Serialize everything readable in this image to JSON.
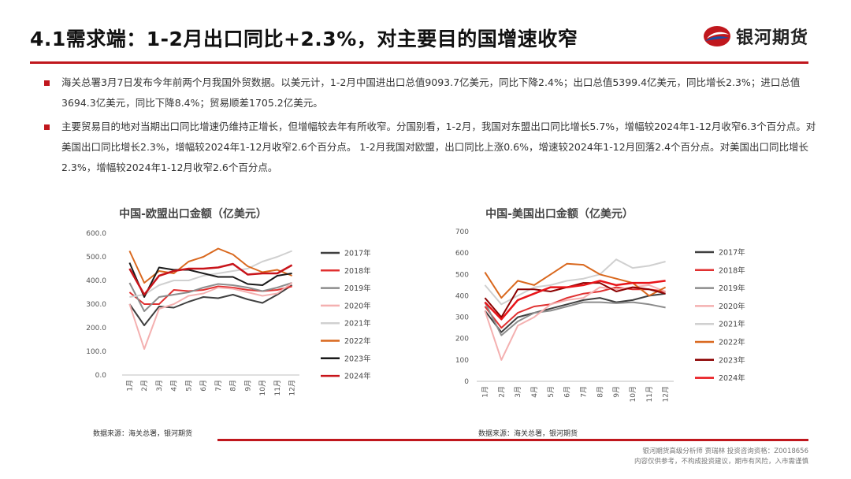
{
  "header": {
    "title": "4.1需求端：1-2月出口同比+2.3%，对主要目的国增速收窄",
    "logo_text": "银河期货"
  },
  "bullets": [
    "海关总署3月7日发布今年前两个月我国外贸数据。以美元计，1-2月中国进出口总值9093.7亿美元，同比下降2.4%；出口总值5399.4亿美元，同比增长2.3%；进口总值3694.3亿美元，同比下降8.4%；贸易顺差1705.2亿美元。",
    "主要贸易目的地对当期出口同比增速仍维持正增长，但增幅较去年有所收窄。分国别看，1-2月，我国对东盟出口同比增长5.7%，增幅较2024年1-12月收窄6.3个百分点。对美国出口同比增长2.3%，增幅较2024年1-12月收窄2.6个百分点。 1-2月我国对欧盟，出口同比上涨0.6%，增速较2024年1-12月回落2.4个百分点。对美国出口同比增长2.3%，增幅较2024年1-12月收窄2.6个百分点。"
  ],
  "chart_data": [
    {
      "type": "line",
      "title": "中国-欧盟出口金额（亿美元）",
      "categories": [
        "1月",
        "2月",
        "3月",
        "4月",
        "5月",
        "6月",
        "7月",
        "8月",
        "9月",
        "10月",
        "11月",
        "12月"
      ],
      "y_ticks": [
        "0.0",
        "100.0",
        "200.0",
        "300.0",
        "400.0",
        "500.0",
        "600.0"
      ],
      "ylim": [
        0,
        600
      ],
      "series": [
        {
          "name": "2017年",
          "color": "#404040",
          "width": 2,
          "values": [
            300,
            210,
            290,
            285,
            310,
            330,
            325,
            340,
            320,
            305,
            340,
            380
          ]
        },
        {
          "name": "2018年",
          "color": "#e03030",
          "width": 2,
          "values": [
            350,
            300,
            300,
            360,
            355,
            360,
            375,
            370,
            360,
            355,
            360,
            375
          ]
        },
        {
          "name": "2019年",
          "color": "#8c8c8c",
          "width": 2,
          "values": [
            390,
            270,
            330,
            340,
            350,
            370,
            385,
            380,
            370,
            355,
            370,
            390
          ]
        },
        {
          "name": "2020年",
          "color": "#f4b0b0",
          "width": 2,
          "values": [
            300,
            110,
            280,
            300,
            335,
            345,
            370,
            365,
            350,
            335,
            345,
            390
          ]
        },
        {
          "name": "2021年",
          "color": "#d0d0d0",
          "width": 2,
          "values": [
            330,
            340,
            380,
            400,
            400,
            420,
            430,
            440,
            450,
            480,
            500,
            525
          ]
        },
        {
          "name": "2022年",
          "color": "#d9681e",
          "width": 2,
          "values": [
            525,
            390,
            440,
            430,
            480,
            500,
            535,
            510,
            460,
            435,
            445,
            420
          ]
        },
        {
          "name": "2023年",
          "color": "#1a1a1a",
          "width": 2,
          "values": [
            475,
            330,
            455,
            445,
            445,
            430,
            415,
            415,
            385,
            380,
            420,
            430
          ]
        },
        {
          "name": "2024年",
          "color": "#c8141a",
          "width": 2.5,
          "values": [
            450,
            340,
            420,
            440,
            450,
            450,
            455,
            470,
            425,
            430,
            430,
            465
          ]
        }
      ]
    },
    {
      "type": "line",
      "title": "中国-美国出口金额（亿美元）",
      "categories": [
        "1月",
        "2月",
        "3月",
        "4月",
        "5月",
        "6月",
        "7月",
        "8月",
        "9月",
        "10月",
        "11月",
        "12月"
      ],
      "y_ticks": [
        "0",
        "100",
        "200",
        "300",
        "400",
        "500",
        "600",
        "700"
      ],
      "ylim": [
        0,
        700
      ],
      "series": [
        {
          "name": "2017年",
          "color": "#404040",
          "width": 2,
          "values": [
            330,
            230,
            300,
            320,
            340,
            360,
            380,
            390,
            370,
            380,
            400,
            410
          ]
        },
        {
          "name": "2018年",
          "color": "#e03030",
          "width": 2,
          "values": [
            350,
            250,
            320,
            350,
            360,
            390,
            410,
            420,
            440,
            430,
            430,
            420
          ]
        },
        {
          "name": "2019年",
          "color": "#8c8c8c",
          "width": 2,
          "values": [
            370,
            215,
            280,
            320,
            330,
            350,
            370,
            370,
            365,
            370,
            360,
            345
          ]
        },
        {
          "name": "2020年",
          "color": "#f4b0b0",
          "width": 2,
          "values": [
            330,
            100,
            260,
            300,
            360,
            380,
            390,
            440,
            430,
            440,
            450,
            420
          ]
        },
        {
          "name": "2021年",
          "color": "#d0d0d0",
          "width": 2,
          "values": [
            450,
            360,
            400,
            440,
            450,
            470,
            480,
            500,
            570,
            530,
            540,
            560
          ]
        },
        {
          "name": "2022年",
          "color": "#d9681e",
          "width": 2,
          "values": [
            510,
            390,
            470,
            450,
            500,
            550,
            545,
            500,
            480,
            460,
            400,
            440
          ]
        },
        {
          "name": "2023年",
          "color": "#8b0000",
          "width": 2,
          "values": [
            390,
            300,
            430,
            430,
            420,
            440,
            460,
            460,
            420,
            440,
            430,
            410
          ]
        },
        {
          "name": "2024年",
          "color": "#e81419",
          "width": 2.5,
          "values": [
            370,
            290,
            380,
            410,
            440,
            440,
            450,
            470,
            450,
            460,
            460,
            470
          ]
        }
      ]
    }
  ],
  "sources": [
    "数据来源：海关总署，银河期货",
    "数据来源：海关总署，银河期货"
  ],
  "footer": {
    "line1": "银河期货高级分析师 贾瑞林 投资咨询资格：Z0018656",
    "line2": "内容仅供参考，不构成投资建议，期市有风险，入市需谨慎"
  },
  "colors": {
    "accent": "#c0171d",
    "logo_blue": "#1b4ea3"
  }
}
